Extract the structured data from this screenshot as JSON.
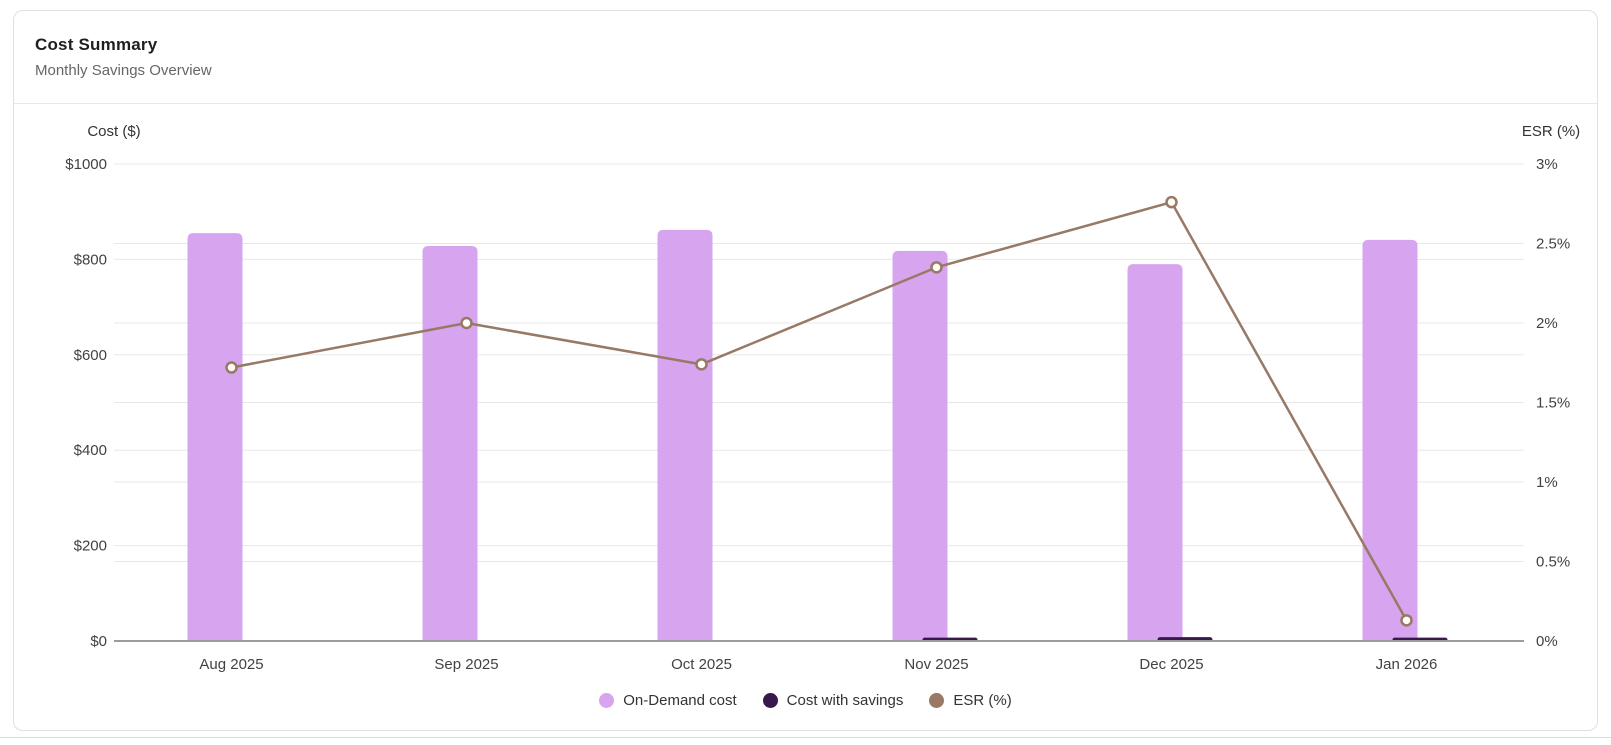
{
  "card": {
    "title": "Cost Summary",
    "subtitle": "Monthly Savings Overview"
  },
  "chart_data": {
    "type": "bar+line combo",
    "categories": [
      "Aug 2025",
      "Sep 2025",
      "Oct 2025",
      "Nov 2025",
      "Dec 2025",
      "Jan 2026"
    ],
    "series": [
      {
        "name": "On-Demand cost",
        "type": "bar",
        "axis": "left",
        "color": "#d7a5ef",
        "values": [
          855,
          828,
          862,
          818,
          790,
          841
        ]
      },
      {
        "name": "Cost with savings",
        "type": "bar",
        "axis": "left",
        "color": "#371a4b",
        "values": [
          0,
          0,
          0,
          5,
          6,
          5
        ]
      },
      {
        "name": "ESR (%)",
        "type": "line",
        "axis": "right",
        "color": "#977966",
        "marker_fill": "#fffdf7",
        "values": [
          1.72,
          2.0,
          1.74,
          2.35,
          2.76,
          0.13
        ]
      }
    ],
    "left_axis": {
      "title": "Cost ($)",
      "ticks": [
        "$1000",
        "$800",
        "$600",
        "$400",
        "$200",
        "$0"
      ],
      "min": 0,
      "max": 1000
    },
    "right_axis": {
      "title": "ESR (%)",
      "ticks": [
        "3%",
        "2.5%",
        "2%",
        "1.5%",
        "1%",
        "0.5%",
        "0%"
      ],
      "min": 0,
      "max": 3
    },
    "grid": true,
    "legend_position": "bottom",
    "colors": {
      "gridline": "#e8e8e8",
      "axis_line": "#9c9c9c",
      "tick_label": "#424242",
      "axis_title": "#333333"
    }
  }
}
